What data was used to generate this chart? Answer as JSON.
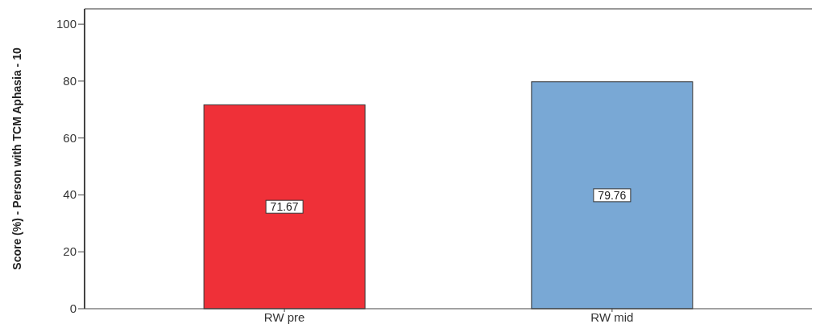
{
  "chart_data": {
    "type": "bar",
    "ylabel": "Score (%) - Person with TCM Aphasia - 10",
    "categories": [
      "RW pre",
      "RW mid"
    ],
    "values": [
      71.67,
      79.76
    ],
    "colors": [
      "#ef3038",
      "#79a8d5"
    ],
    "ylim": [
      0,
      105.4
    ],
    "yticks": [
      0,
      20,
      40,
      60,
      80,
      100
    ],
    "data_labels": true,
    "grid": false
  }
}
